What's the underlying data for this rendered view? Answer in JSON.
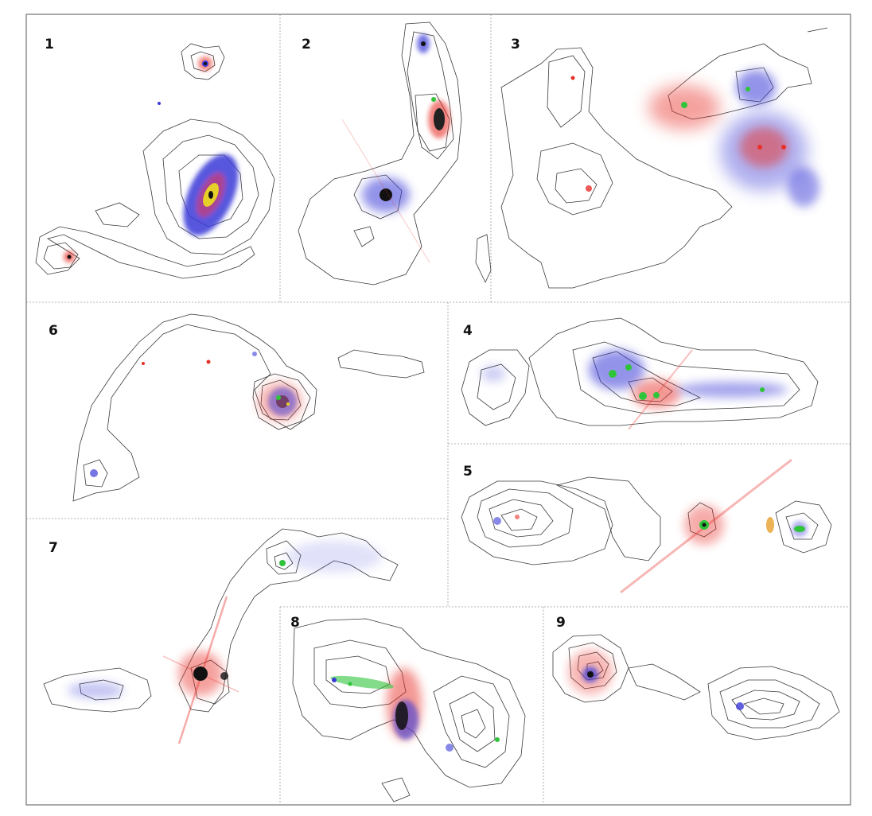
{
  "figure": {
    "panels": [
      {
        "id": "panel-1",
        "label": "1"
      },
      {
        "id": "panel-2",
        "label": "2"
      },
      {
        "id": "panel-3",
        "label": "3"
      },
      {
        "id": "panel-4",
        "label": "4"
      },
      {
        "id": "panel-5",
        "label": "5"
      },
      {
        "id": "panel-6",
        "label": "6"
      },
      {
        "id": "panel-7",
        "label": "7"
      },
      {
        "id": "panel-8",
        "label": "8"
      },
      {
        "id": "panel-9",
        "label": "9"
      }
    ],
    "colors": {
      "contour": "#3a3a3a",
      "red_band": "#e8302a",
      "blue_band": "#3a3ad8",
      "green_band": "#2fc43a",
      "core": "#111111",
      "divider": "#9a9a9a",
      "frame": "#555555"
    }
  }
}
